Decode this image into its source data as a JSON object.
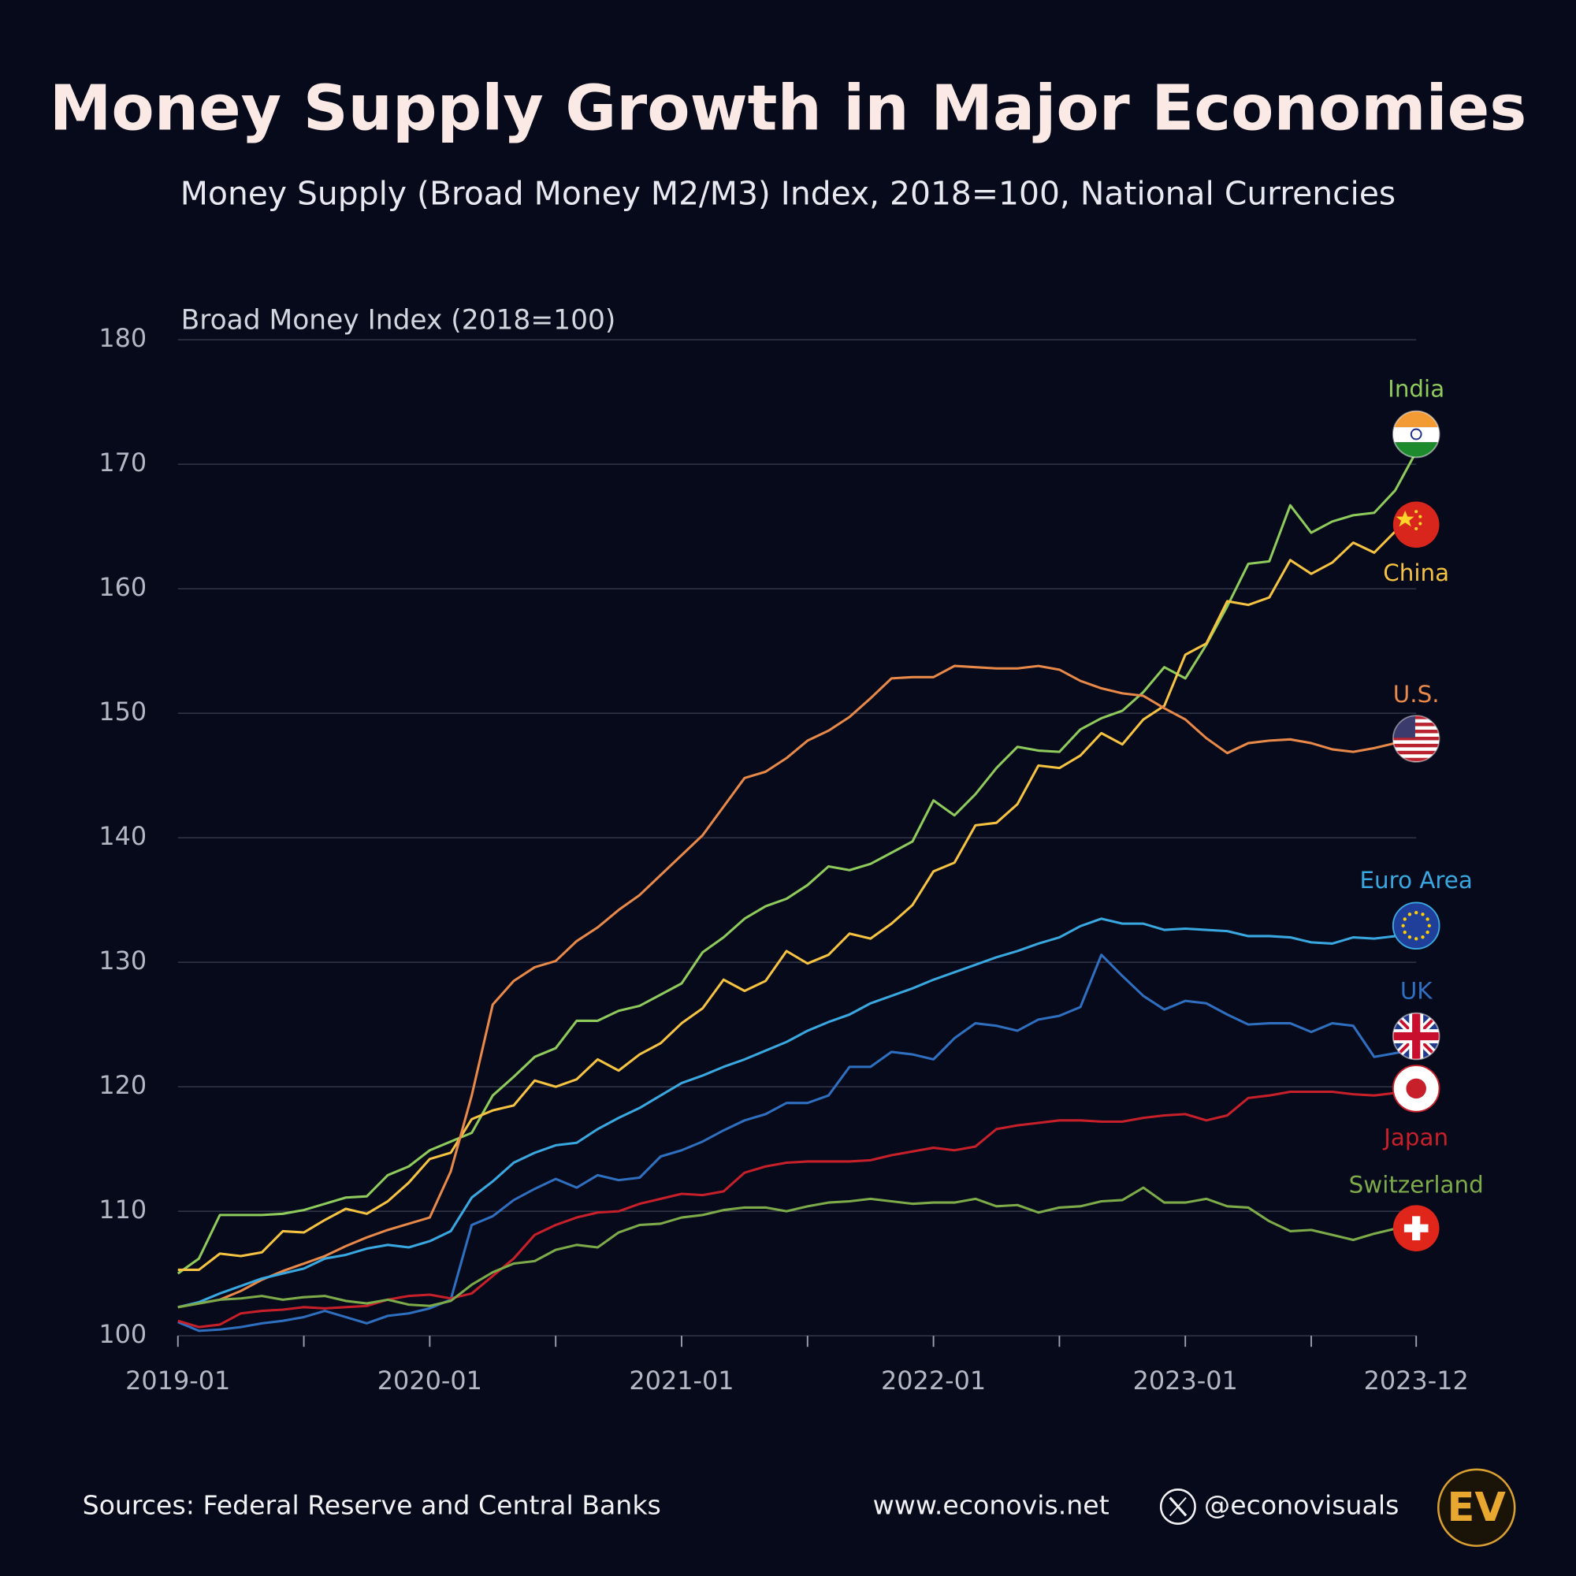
{
  "chart_data": {
    "type": "line",
    "title": "Money Supply Growth in Major Economies",
    "subtitle": "Money Supply (Broad Money M2/M3) Index, 2018=100, National Currencies",
    "y_label": "Broad Money Index (2018=100)",
    "source": "Sources: Federal Reserve and Central Banks",
    "website": "www.econovis.net",
    "handle": "@econovisuals",
    "logo_text": "EV",
    "x": [
      "2019-01",
      "2019-02",
      "2019-03",
      "2019-04",
      "2019-05",
      "2019-06",
      "2019-07",
      "2019-08",
      "2019-09",
      "2019-10",
      "2019-11",
      "2019-12",
      "2020-01",
      "2020-02",
      "2020-03",
      "2020-04",
      "2020-05",
      "2020-06",
      "2020-07",
      "2020-08",
      "2020-09",
      "2020-10",
      "2020-11",
      "2020-12",
      "2021-01",
      "2021-02",
      "2021-03",
      "2021-04",
      "2021-05",
      "2021-06",
      "2021-07",
      "2021-08",
      "2021-09",
      "2021-10",
      "2021-11",
      "2021-12",
      "2022-01",
      "2022-02",
      "2022-03",
      "2022-04",
      "2022-05",
      "2022-06",
      "2022-07",
      "2022-08",
      "2022-09",
      "2022-10",
      "2022-11",
      "2022-12",
      "2023-01",
      "2023-02",
      "2023-03",
      "2023-04",
      "2023-05",
      "2023-06",
      "2023-07",
      "2023-08",
      "2023-09",
      "2023-10",
      "2023-11",
      "2023-12"
    ],
    "xlim": [
      "2019-01",
      "2023-12"
    ],
    "xticks": [
      "2019-01",
      {
        "value": "2019-07",
        "label": null
      },
      "2020-01",
      {
        "value": "2020-07",
        "label": null
      },
      "2021-01",
      {
        "value": "2021-07",
        "label": null
      },
      "2022-01",
      {
        "value": "2022-07",
        "label": null
      },
      "2023-01",
      {
        "value": "2023-07",
        "label": null
      },
      "2023-12"
    ],
    "ylim": [
      100,
      180
    ],
    "yticks": [
      100,
      110,
      120,
      130,
      140,
      150,
      160,
      170,
      180
    ],
    "grid": true,
    "series": [
      {
        "name": "India",
        "color": "#8fcb5c",
        "values": [
          105.0,
          106.2,
          109.7,
          109.7,
          109.7,
          109.8,
          110.1,
          110.6,
          111.1,
          111.2,
          112.9,
          113.6,
          114.9,
          115.6,
          116.3,
          119.3,
          120.8,
          122.4,
          123.1,
          125.3,
          125.3,
          126.1,
          126.5,
          127.4,
          128.3,
          130.8,
          132.0,
          133.5,
          134.5,
          135.1,
          136.2,
          137.7,
          137.4,
          137.9,
          138.8,
          139.7,
          143.0,
          141.8,
          143.5,
          145.6,
          147.3,
          147.0,
          146.9,
          148.7,
          149.6,
          150.2,
          151.7,
          153.7,
          152.8,
          155.5,
          158.6,
          162.0,
          162.2,
          166.7,
          164.5,
          165.4,
          165.9,
          166.1,
          167.9,
          171.0
        ]
      },
      {
        "name": "China",
        "color": "#f5c242",
        "values": [
          105.3,
          105.3,
          106.6,
          106.4,
          106.7,
          108.4,
          108.3,
          109.3,
          110.2,
          109.8,
          110.8,
          112.3,
          114.2,
          114.7,
          117.4,
          118.1,
          118.5,
          120.5,
          120.0,
          120.6,
          122.2,
          121.3,
          122.6,
          123.5,
          125.1,
          126.3,
          128.6,
          127.7,
          128.5,
          130.9,
          129.9,
          130.6,
          132.3,
          131.9,
          133.1,
          134.6,
          137.3,
          138.0,
          141.0,
          141.2,
          142.7,
          145.8,
          145.6,
          146.6,
          148.4,
          147.5,
          149.5,
          150.6,
          154.7,
          155.6,
          159.0,
          158.7,
          159.3,
          162.3,
          161.2,
          162.1,
          163.7,
          162.9,
          164.6,
          165.3
        ]
      },
      {
        "name": "U.S.",
        "color": "#e8894a",
        "values": [
          102.3,
          102.6,
          102.9,
          103.6,
          104.5,
          105.2,
          105.8,
          106.4,
          107.2,
          107.9,
          108.5,
          109.0,
          109.5,
          113.2,
          119.3,
          126.6,
          128.5,
          129.6,
          130.1,
          131.7,
          132.8,
          134.2,
          135.4,
          137.0,
          138.6,
          140.2,
          142.5,
          144.8,
          145.3,
          146.4,
          147.8,
          148.6,
          149.7,
          151.2,
          152.8,
          152.9,
          152.9,
          153.8,
          153.7,
          153.6,
          153.6,
          153.8,
          153.5,
          152.6,
          152.0,
          151.6,
          151.4,
          150.4,
          149.5,
          148.0,
          146.8,
          147.6,
          147.8,
          147.9,
          147.6,
          147.1,
          146.9,
          147.2,
          147.6,
          147.8
        ]
      },
      {
        "name": "Euro Area",
        "color": "#3aa8e0",
        "values": [
          102.3,
          102.7,
          103.4,
          104.0,
          104.6,
          105.0,
          105.4,
          106.2,
          106.5,
          107.0,
          107.3,
          107.1,
          107.6,
          108.4,
          111.1,
          112.4,
          113.9,
          114.7,
          115.3,
          115.5,
          116.6,
          117.5,
          118.3,
          119.3,
          120.3,
          120.9,
          121.6,
          122.2,
          122.9,
          123.6,
          124.5,
          125.2,
          125.8,
          126.7,
          127.3,
          127.9,
          128.6,
          129.2,
          129.8,
          130.4,
          130.9,
          131.5,
          132.0,
          132.9,
          133.5,
          133.1,
          133.1,
          132.6,
          132.7,
          132.6,
          132.5,
          132.1,
          132.1,
          132.0,
          131.6,
          131.5,
          132.0,
          131.9,
          132.1,
          132.3
        ]
      },
      {
        "name": "UK",
        "color": "#2f6fc0",
        "values": [
          101.1,
          100.4,
          100.5,
          100.7,
          101.0,
          101.2,
          101.5,
          102.0,
          101.5,
          101.0,
          101.6,
          101.8,
          102.2,
          102.9,
          108.9,
          109.6,
          110.9,
          111.8,
          112.6,
          111.9,
          112.9,
          112.5,
          112.7,
          114.4,
          114.9,
          115.6,
          116.5,
          117.3,
          117.8,
          118.7,
          118.7,
          119.3,
          121.6,
          121.6,
          122.8,
          122.6,
          122.2,
          123.9,
          125.1,
          124.9,
          124.5,
          125.4,
          125.7,
          126.4,
          130.6,
          128.9,
          127.3,
          126.2,
          126.9,
          126.7,
          125.8,
          125.0,
          125.1,
          125.1,
          124.4,
          125.1,
          124.9,
          122.4,
          122.7,
          123.0
        ]
      },
      {
        "name": "Japan",
        "color": "#c8202a",
        "values": [
          101.2,
          100.7,
          100.9,
          101.8,
          102.0,
          102.1,
          102.3,
          102.2,
          102.3,
          102.4,
          102.9,
          103.2,
          103.3,
          103.0,
          103.4,
          104.8,
          106.2,
          108.1,
          108.9,
          109.5,
          109.9,
          110.0,
          110.6,
          111.0,
          111.4,
          111.3,
          111.6,
          113.1,
          113.6,
          113.9,
          114.0,
          114.0,
          114.0,
          114.1,
          114.5,
          114.8,
          115.1,
          114.9,
          115.2,
          116.6,
          116.9,
          117.1,
          117.3,
          117.3,
          117.2,
          117.2,
          117.5,
          117.7,
          117.8,
          117.3,
          117.7,
          119.1,
          119.3,
          119.6,
          119.6,
          119.6,
          119.4,
          119.3,
          119.5,
          119.7
        ]
      },
      {
        "name": "Switzerland",
        "color": "#7dab4a",
        "values": [
          102.3,
          102.6,
          102.9,
          103.0,
          103.2,
          102.9,
          103.1,
          103.2,
          102.8,
          102.6,
          102.9,
          102.5,
          102.4,
          102.8,
          104.1,
          105.1,
          105.8,
          106.0,
          106.9,
          107.3,
          107.1,
          108.3,
          108.9,
          109.0,
          109.5,
          109.7,
          110.1,
          110.3,
          110.3,
          110.0,
          110.4,
          110.7,
          110.8,
          111.0,
          110.8,
          110.6,
          110.7,
          110.7,
          111.0,
          110.4,
          110.5,
          109.9,
          110.3,
          110.4,
          110.8,
          110.9,
          111.9,
          110.7,
          110.7,
          111.0,
          110.4,
          110.3,
          109.2,
          108.4,
          108.5,
          108.1,
          107.7,
          108.2,
          108.6,
          108.7
        ]
      }
    ]
  }
}
